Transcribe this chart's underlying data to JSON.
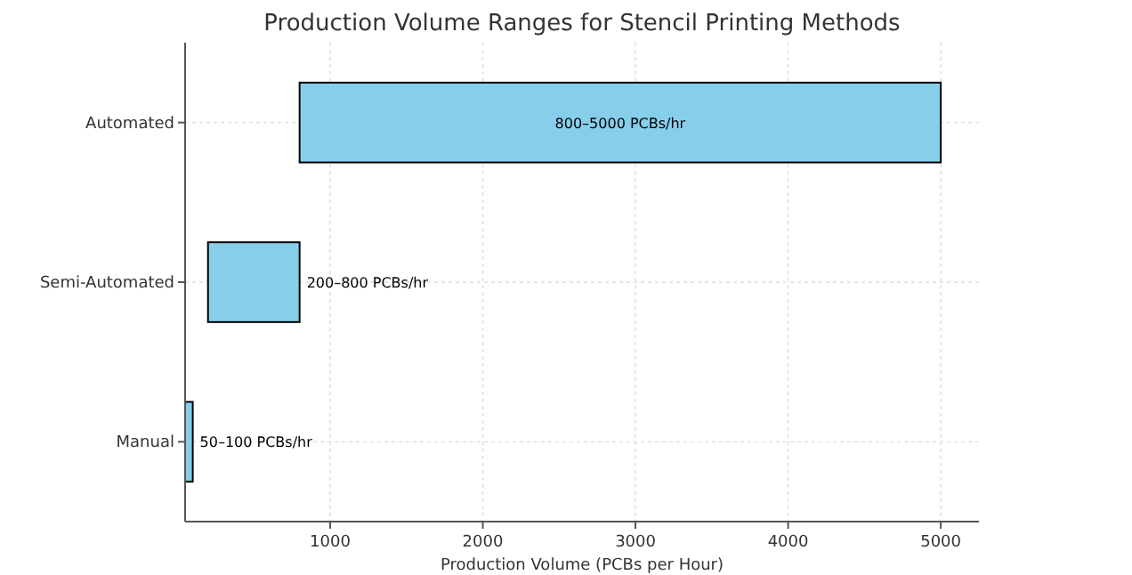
{
  "chart_data": {
    "type": "bar",
    "orientation": "horizontal",
    "title": "Production Volume Ranges for Stencil Printing Methods",
    "xlabel": "Production Volume (PCBs per Hour)",
    "categories": [
      "Automated",
      "Semi-Automated",
      "Manual"
    ],
    "base": [
      800,
      200,
      50
    ],
    "values": [
      4200,
      600,
      50
    ],
    "color": "#87ceeb",
    "value_labels": [
      "800–5000 PCBs/hr",
      "200–800 PCBs/hr",
      "50–100 PCBs/hr"
    ],
    "xlim": [
      50,
      5250
    ],
    "xticks": [
      1000,
      2000,
      3000,
      4000,
      5000
    ],
    "grid": true
  }
}
